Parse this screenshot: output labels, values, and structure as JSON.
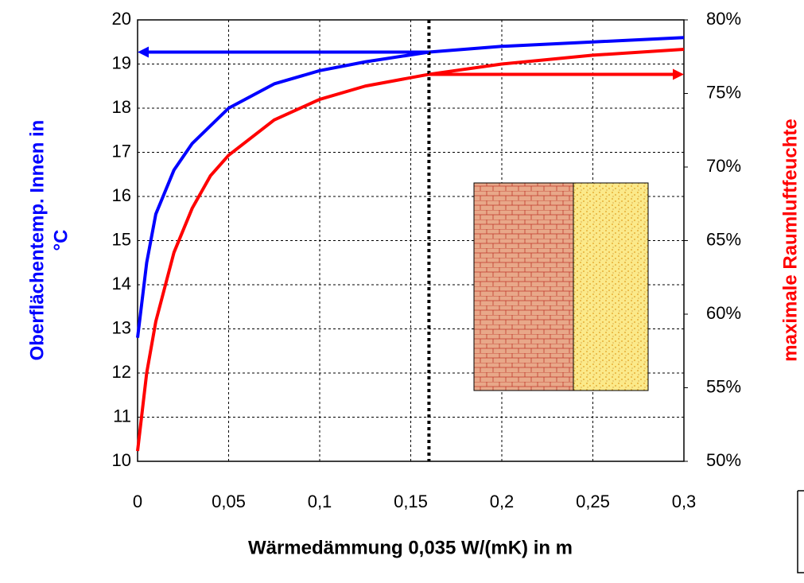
{
  "chart_data": {
    "type": "line",
    "xlabel": "Wärmedämmung 0,035 W/(mK) in m",
    "ylabel": [
      "Oberflächentemp. Innen in",
      "°C"
    ],
    "y2label": "maximale Raumluftfeuchte",
    "x": [
      0,
      0.005,
      0.01,
      0.02,
      0.03,
      0.04,
      0.05,
      0.075,
      0.1,
      0.125,
      0.16,
      0.2,
      0.25,
      0.3
    ],
    "series": [
      {
        "color": "#0000ff",
        "values": [
          12.8,
          14.5,
          15.6,
          16.6,
          17.2,
          17.6,
          18.0,
          18.55,
          18.85,
          19.05,
          19.27,
          19.4,
          19.5,
          19.6
        ]
      },
      {
        "color": "#ff0000",
        "axis": "y2",
        "values": [
          50.7,
          56,
          59.5,
          64.2,
          67.2,
          69.4,
          70.8,
          73.2,
          74.6,
          75.5,
          76.3,
          77.0,
          77.6,
          78.0
        ]
      }
    ],
    "xlim": [
      0,
      0.3
    ],
    "xticks": [
      0,
      {
        "value": 0.05,
        "label": "0,05"
      },
      {
        "value": 0.1,
        "label": "0,1"
      },
      {
        "value": 0.15,
        "label": "0,15"
      },
      {
        "value": 0.2,
        "label": "0,2"
      },
      {
        "value": 0.25,
        "label": "0,25"
      },
      {
        "value": 0.3,
        "label": "0,3"
      }
    ],
    "ylim": [
      10,
      20
    ],
    "yticks": [
      10,
      11,
      12,
      13,
      14,
      15,
      16,
      17,
      18,
      19,
      20
    ],
    "y2lim": [
      50,
      80
    ],
    "y2ticks": [
      {
        "value": 50,
        "label": "50%"
      },
      {
        "value": 55,
        "label": "55%"
      },
      {
        "value": 60,
        "label": "60%"
      },
      {
        "value": 65,
        "label": "65%"
      },
      {
        "value": 70,
        "label": "70%"
      },
      {
        "value": 75,
        "label": "75%"
      },
      {
        "value": 80,
        "label": "80%"
      }
    ],
    "grid": true
  }
}
